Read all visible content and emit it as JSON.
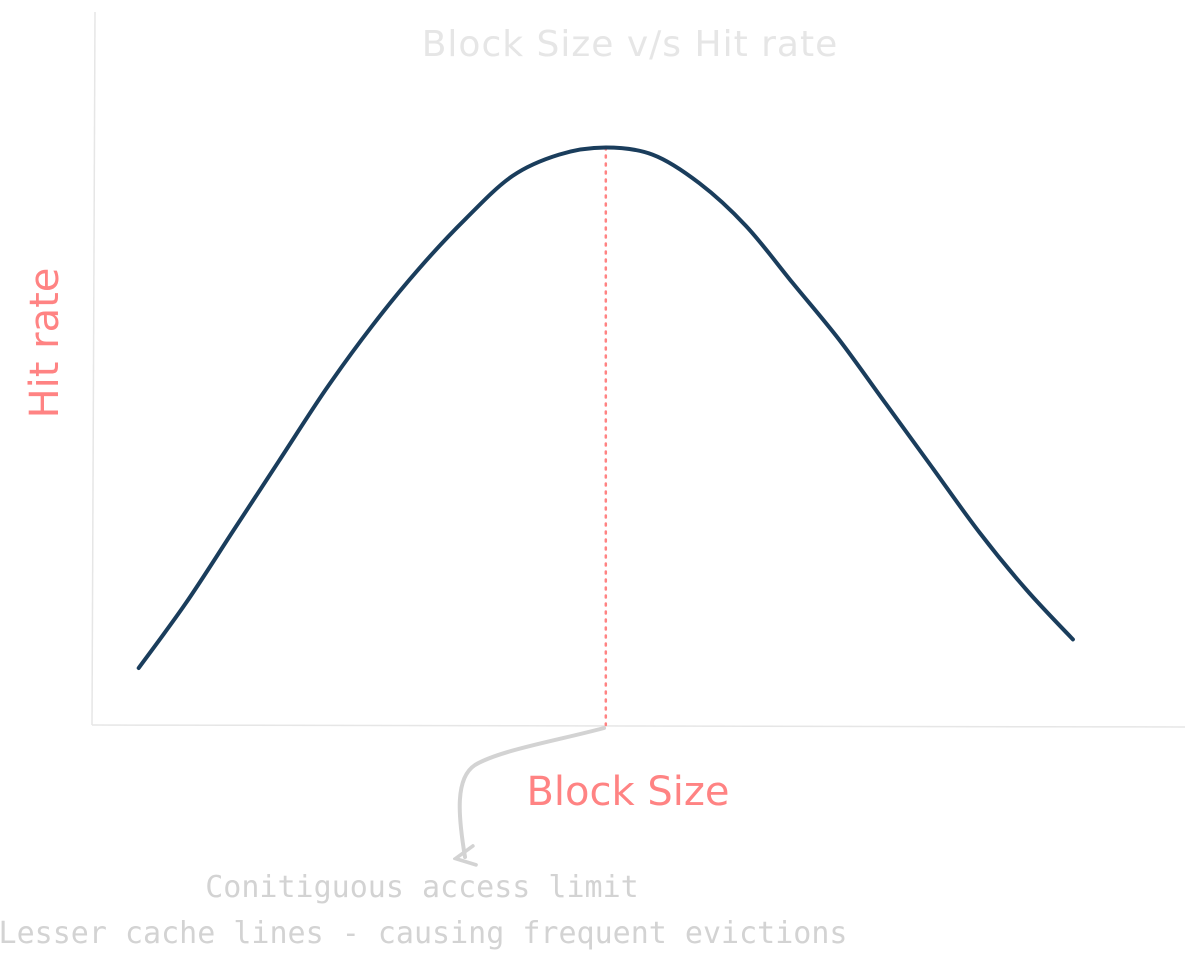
{
  "chart_data": {
    "type": "line",
    "title": "Block Size v/s Hit rate",
    "xlabel": "Block Size",
    "ylabel": "Hit rate",
    "x": [
      0,
      1,
      2,
      3,
      4,
      5,
      6,
      7,
      8,
      9,
      10,
      11,
      12,
      13,
      14,
      15,
      16,
      17,
      18,
      19,
      20
    ],
    "series": [
      {
        "values": [
          0.08,
          0.17,
          0.27,
          0.37,
          0.47,
          0.56,
          0.64,
          0.71,
          0.77,
          0.8,
          0.81,
          0.8,
          0.76,
          0.7,
          0.62,
          0.54,
          0.45,
          0.36,
          0.27,
          0.19,
          0.12
        ]
      }
    ],
    "xlim": [
      -1,
      22.4
    ],
    "ylim": [
      0,
      1.0
    ],
    "grid": false,
    "peak_x": 10,
    "annotations": [
      "Conitiguous access limit",
      "Lesser cache lines - causing frequent evictions"
    ],
    "colors": {
      "line": "#1a3d5c",
      "axis": "#e6e6e6",
      "peak_marker": "#ff8383",
      "labels": "#ff8383",
      "title": "#e6e6e6",
      "annotation": "#d3d3d3"
    }
  }
}
